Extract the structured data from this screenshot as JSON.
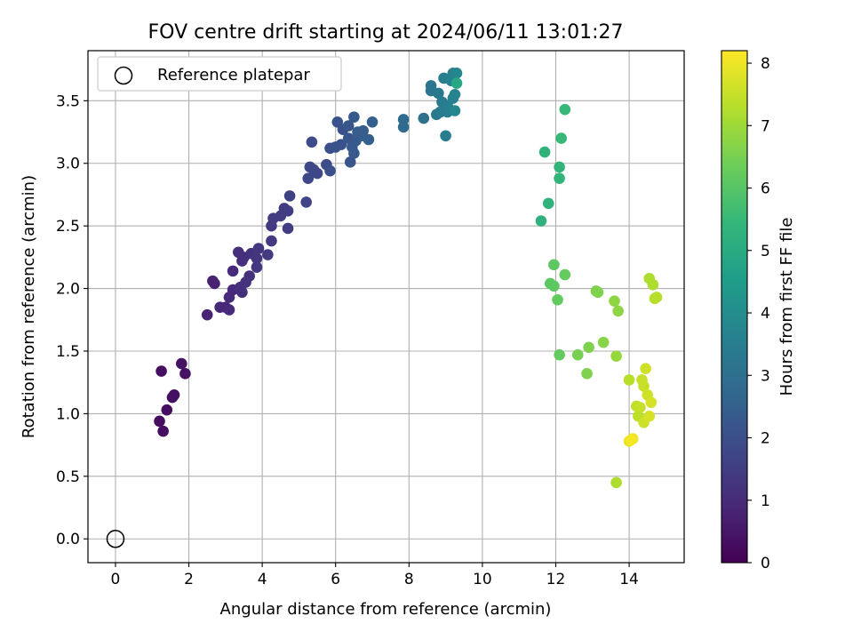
{
  "chart_data": {
    "type": "scatter",
    "title": "FOV centre drift starting at 2024/06/11 13:01:27",
    "xlabel": "Angular distance from reference (arcmin)",
    "ylabel": "Rotation from reference (arcmin)",
    "xlim": [
      -0.75,
      15.5
    ],
    "ylim": [
      -0.19,
      3.9
    ],
    "xticks": [
      0,
      2,
      4,
      6,
      8,
      10,
      12,
      14
    ],
    "yticks": [
      0.0,
      0.5,
      1.0,
      1.5,
      2.0,
      2.5,
      3.0,
      3.5
    ],
    "xtick_labels": [
      "0",
      "2",
      "4",
      "6",
      "8",
      "10",
      "12",
      "14"
    ],
    "ytick_labels": [
      "0.0",
      "0.5",
      "1.0",
      "1.5",
      "2.0",
      "2.5",
      "3.0",
      "3.5"
    ],
    "grid": true,
    "legend": {
      "placement": "top-left",
      "entries": [
        {
          "label": "Reference platepar",
          "marker": "open-circle"
        }
      ]
    },
    "reference_point": {
      "x": 0.0,
      "y": 0.0
    },
    "colorbar": {
      "label": "Hours from first FF file",
      "range": [
        0,
        8.2
      ],
      "ticks": [
        0,
        1,
        2,
        3,
        4,
        5,
        6,
        7,
        8
      ],
      "tick_labels": [
        "0",
        "1",
        "2",
        "3",
        "4",
        "5",
        "6",
        "7",
        "8"
      ],
      "colormap": "viridis",
      "colormap_stops": [
        "#440154",
        "#482878",
        "#3e4989",
        "#31688e",
        "#26828e",
        "#1f9e89",
        "#35b779",
        "#6ece58",
        "#b5de2b",
        "#fde725"
      ]
    },
    "points": [
      [
        1.2,
        0.94,
        0.3
      ],
      [
        1.3,
        0.86,
        0.3
      ],
      [
        1.4,
        1.03,
        0.3
      ],
      [
        1.25,
        1.34,
        0.3
      ],
      [
        1.55,
        1.13,
        0.35
      ],
      [
        1.6,
        1.15,
        0.35
      ],
      [
        1.8,
        1.4,
        0.4
      ],
      [
        1.9,
        1.32,
        0.4
      ],
      [
        2.5,
        1.79,
        0.8
      ],
      [
        2.65,
        2.06,
        0.8
      ],
      [
        2.7,
        2.04,
        0.8
      ],
      [
        2.85,
        1.85,
        0.9
      ],
      [
        3.0,
        1.85,
        0.9
      ],
      [
        3.1,
        1.83,
        1.0
      ],
      [
        3.1,
        1.93,
        1.0
      ],
      [
        3.2,
        1.99,
        1.0
      ],
      [
        3.2,
        2.14,
        1.0
      ],
      [
        3.35,
        2.29,
        1.1
      ],
      [
        3.4,
        2.01,
        1.1
      ],
      [
        3.45,
        1.97,
        1.1
      ],
      [
        3.45,
        2.22,
        1.1
      ],
      [
        3.5,
        2.25,
        1.1
      ],
      [
        3.55,
        2.05,
        1.2
      ],
      [
        3.65,
        2.1,
        1.2
      ],
      [
        3.7,
        2.28,
        1.2
      ],
      [
        3.85,
        2.17,
        1.3
      ],
      [
        3.85,
        2.24,
        1.3
      ],
      [
        3.9,
        2.32,
        1.3
      ],
      [
        4.15,
        2.27,
        1.4
      ],
      [
        4.25,
        2.38,
        1.4
      ],
      [
        4.25,
        2.5,
        1.4
      ],
      [
        4.3,
        2.56,
        1.5
      ],
      [
        4.5,
        2.58,
        1.5
      ],
      [
        4.6,
        2.64,
        1.5
      ],
      [
        4.7,
        2.48,
        1.5
      ],
      [
        4.7,
        2.62,
        1.5
      ],
      [
        4.75,
        2.74,
        1.6
      ],
      [
        5.2,
        2.69,
        1.7
      ],
      [
        5.25,
        2.88,
        1.8
      ],
      [
        5.3,
        2.97,
        1.8
      ],
      [
        5.4,
        2.95,
        1.8
      ],
      [
        5.5,
        2.92,
        1.8
      ],
      [
        5.35,
        3.17,
        1.9
      ],
      [
        5.75,
        2.99,
        1.9
      ],
      [
        5.85,
        2.94,
        2.0
      ],
      [
        5.85,
        3.12,
        2.0
      ],
      [
        6.0,
        3.13,
        2.1
      ],
      [
        6.05,
        3.33,
        2.1
      ],
      [
        6.15,
        3.15,
        2.1
      ],
      [
        6.2,
        3.27,
        2.1
      ],
      [
        6.35,
        3.2,
        2.2
      ],
      [
        6.35,
        3.3,
        2.2
      ],
      [
        6.4,
        3.01,
        2.2
      ],
      [
        6.45,
        3.13,
        2.3
      ],
      [
        6.5,
        3.08,
        2.3
      ],
      [
        6.5,
        3.37,
        2.3
      ],
      [
        6.55,
        3.18,
        2.3
      ],
      [
        6.6,
        3.25,
        2.4
      ],
      [
        6.7,
        3.22,
        2.4
      ],
      [
        6.75,
        3.26,
        2.4
      ],
      [
        6.9,
        3.19,
        2.5
      ],
      [
        7.0,
        3.33,
        2.5
      ],
      [
        7.85,
        3.29,
        2.8
      ],
      [
        7.85,
        3.35,
        2.8
      ],
      [
        8.4,
        3.36,
        3.0
      ],
      [
        8.6,
        3.58,
        3.2
      ],
      [
        8.6,
        3.62,
        3.2
      ],
      [
        8.75,
        3.39,
        3.3
      ],
      [
        8.8,
        3.56,
        3.3
      ],
      [
        8.85,
        3.41,
        3.4
      ],
      [
        8.9,
        3.49,
        3.4
      ],
      [
        8.95,
        3.68,
        3.5
      ],
      [
        9.0,
        3.22,
        3.5
      ],
      [
        9.05,
        3.41,
        3.5
      ],
      [
        9.05,
        3.46,
        3.5
      ],
      [
        9.15,
        3.66,
        3.6
      ],
      [
        9.2,
        3.52,
        3.6
      ],
      [
        9.2,
        3.72,
        3.6
      ],
      [
        9.25,
        3.55,
        3.7
      ],
      [
        9.25,
        3.42,
        3.8
      ],
      [
        9.3,
        3.72,
        3.8
      ],
      [
        9.3,
        3.64,
        4.9
      ],
      [
        11.6,
        2.54,
        5.2
      ],
      [
        11.7,
        3.09,
        5.3
      ],
      [
        11.8,
        2.68,
        5.3
      ],
      [
        12.1,
        2.88,
        5.4
      ],
      [
        12.1,
        2.97,
        5.4
      ],
      [
        12.15,
        3.2,
        5.5
      ],
      [
        12.25,
        3.43,
        5.5
      ],
      [
        11.85,
        2.04,
        6.1
      ],
      [
        11.95,
        2.02,
        6.1
      ],
      [
        11.95,
        2.19,
        6.1
      ],
      [
        12.05,
        1.91,
        6.2
      ],
      [
        12.1,
        1.47,
        6.2
      ],
      [
        12.25,
        2.11,
        6.2
      ],
      [
        12.6,
        1.47,
        6.5
      ],
      [
        12.85,
        1.32,
        6.6
      ],
      [
        12.9,
        1.53,
        6.6
      ],
      [
        13.1,
        1.98,
        6.6
      ],
      [
        13.15,
        1.97,
        6.6
      ],
      [
        13.3,
        1.57,
        6.7
      ],
      [
        13.6,
        1.9,
        6.8
      ],
      [
        13.7,
        1.82,
        6.8
      ],
      [
        13.65,
        1.46,
        6.9
      ],
      [
        13.65,
        0.45,
        7.2
      ],
      [
        14.0,
        1.27,
        7.3
      ],
      [
        14.2,
        1.06,
        7.4
      ],
      [
        14.25,
        0.98,
        7.4
      ],
      [
        14.3,
        1.05,
        7.5
      ],
      [
        14.35,
        1.27,
        7.5
      ],
      [
        14.4,
        1.22,
        7.5
      ],
      [
        14.4,
        0.93,
        7.6
      ],
      [
        14.45,
        1.36,
        7.6
      ],
      [
        14.5,
        1.15,
        7.6
      ],
      [
        14.55,
        0.98,
        7.7
      ],
      [
        14.6,
        1.09,
        7.7
      ],
      [
        14.55,
        2.08,
        7.2
      ],
      [
        14.65,
        2.03,
        7.2
      ],
      [
        14.7,
        1.92,
        7.3
      ],
      [
        14.75,
        1.93,
        7.3
      ],
      [
        14.0,
        0.78,
        7.9
      ],
      [
        14.1,
        0.8,
        8.0
      ],
      [
        14.05,
        0.79,
        8.1
      ]
    ]
  }
}
